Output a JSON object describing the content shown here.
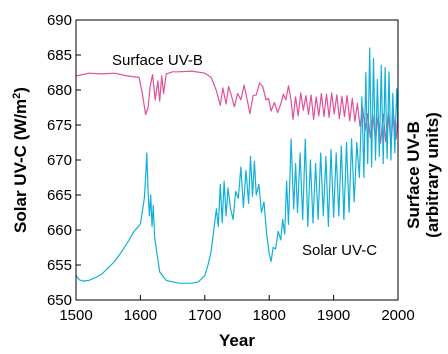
{
  "chart_data": {
    "type": "line",
    "xlabel": "Year",
    "ylabel_left": "Solar UV-C  (W/m²)",
    "ylabel_right_line1": "Surface UV-B",
    "ylabel_right_line2": "(arbitrary units)",
    "xlim": [
      1500,
      2000
    ],
    "ylim": [
      650,
      690
    ],
    "x_ticks": [
      1500,
      1600,
      1700,
      1800,
      1900,
      2000
    ],
    "y_ticks": [
      650,
      655,
      660,
      665,
      670,
      675,
      680,
      685,
      690
    ],
    "grid": false,
    "series": [
      {
        "name": "Surface UV-B",
        "color": "#e0509a",
        "points": [
          [
            1500,
            682
          ],
          [
            1520,
            682.4
          ],
          [
            1540,
            682.3
          ],
          [
            1560,
            682.4
          ],
          [
            1580,
            682
          ],
          [
            1598,
            681.8
          ],
          [
            1603,
            679.5
          ],
          [
            1608,
            676.5
          ],
          [
            1612,
            677.5
          ],
          [
            1615,
            680.5
          ],
          [
            1619,
            682.2
          ],
          [
            1623,
            678.6
          ],
          [
            1627,
            681.3
          ],
          [
            1630,
            678.4
          ],
          [
            1633,
            682
          ],
          [
            1636,
            679.5
          ],
          [
            1640,
            682.3
          ],
          [
            1650,
            682.6
          ],
          [
            1660,
            682.6
          ],
          [
            1680,
            682.7
          ],
          [
            1700,
            682.4
          ],
          [
            1710,
            681.8
          ],
          [
            1718,
            679.9
          ],
          [
            1724,
            677.8
          ],
          [
            1728,
            680.3
          ],
          [
            1733,
            678
          ],
          [
            1737,
            680.5
          ],
          [
            1741,
            679.3
          ],
          [
            1746,
            677.6
          ],
          [
            1751,
            679.5
          ],
          [
            1756,
            678.6
          ],
          [
            1761,
            680.7
          ],
          [
            1766,
            678.5
          ],
          [
            1770,
            676.6
          ],
          [
            1775,
            679.2
          ],
          [
            1780,
            679.3
          ],
          [
            1785,
            681
          ],
          [
            1790,
            680.5
          ],
          [
            1795,
            678.6
          ],
          [
            1799,
            678.8
          ],
          [
            1803,
            677
          ],
          [
            1808,
            678.2
          ],
          [
            1813,
            676.8
          ],
          [
            1818,
            678
          ],
          [
            1822,
            679.4
          ],
          [
            1826,
            678.6
          ],
          [
            1830,
            680.6
          ],
          [
            1834,
            678.5
          ],
          [
            1837,
            675.8
          ],
          [
            1841,
            679
          ],
          [
            1845,
            676.3
          ],
          [
            1849,
            679.6
          ],
          [
            1853,
            677.1
          ],
          [
            1857,
            679.2
          ],
          [
            1861,
            676.5
          ],
          [
            1865,
            679.3
          ],
          [
            1869,
            675.8
          ],
          [
            1873,
            679
          ],
          [
            1877,
            676.3
          ],
          [
            1881,
            679.5
          ],
          [
            1885,
            676.2
          ],
          [
            1889,
            679.4
          ],
          [
            1893,
            676.1
          ],
          [
            1897,
            679.6
          ],
          [
            1901,
            676.6
          ],
          [
            1905,
            679.3
          ],
          [
            1909,
            675.9
          ],
          [
            1913,
            679.1
          ],
          [
            1917,
            676.2
          ],
          [
            1921,
            679.2
          ],
          [
            1925,
            675.6
          ],
          [
            1929,
            678.8
          ],
          [
            1933,
            675.5
          ],
          [
            1937,
            678.1
          ],
          [
            1941,
            674.8
          ],
          [
            1945,
            677.6
          ],
          [
            1949,
            674.2
          ],
          [
            1953,
            676.6
          ],
          [
            1957,
            673.2
          ],
          [
            1961,
            676.4
          ],
          [
            1965,
            672.8
          ],
          [
            1969,
            676.2
          ],
          [
            1973,
            672.4
          ],
          [
            1977,
            676.6
          ],
          [
            1981,
            672.6
          ],
          [
            1985,
            676.8
          ],
          [
            1989,
            672.4
          ],
          [
            1993,
            676.6
          ],
          [
            1997,
            673
          ],
          [
            2000,
            676.4
          ]
        ]
      },
      {
        "name": "Solar UV-C",
        "color": "#10b0d8",
        "points": [
          [
            1500,
            653.5
          ],
          [
            1505,
            652.9
          ],
          [
            1510,
            652.7
          ],
          [
            1520,
            652.8
          ],
          [
            1530,
            653.2
          ],
          [
            1540,
            653.7
          ],
          [
            1550,
            654.6
          ],
          [
            1560,
            655.5
          ],
          [
            1570,
            656.8
          ],
          [
            1580,
            658.2
          ],
          [
            1590,
            659.8
          ],
          [
            1597,
            660.5
          ],
          [
            1600,
            660.9
          ],
          [
            1603,
            662.6
          ],
          [
            1606,
            664.5
          ],
          [
            1608,
            667.5
          ],
          [
            1610,
            671
          ],
          [
            1612,
            665.5
          ],
          [
            1614,
            662
          ],
          [
            1616,
            665
          ],
          [
            1618,
            660.5
          ],
          [
            1620,
            663.5
          ],
          [
            1622,
            659
          ],
          [
            1626,
            656.5
          ],
          [
            1630,
            654
          ],
          [
            1640,
            652.8
          ],
          [
            1660,
            652.4
          ],
          [
            1680,
            652.4
          ],
          [
            1690,
            652.6
          ],
          [
            1700,
            653.5
          ],
          [
            1705,
            655
          ],
          [
            1710,
            657
          ],
          [
            1714,
            660
          ],
          [
            1718,
            663
          ],
          [
            1721,
            660.5
          ],
          [
            1724,
            666.5
          ],
          [
            1727,
            661
          ],
          [
            1730,
            667
          ],
          [
            1733,
            662
          ],
          [
            1736,
            666
          ],
          [
            1740,
            663
          ],
          [
            1744,
            661.5
          ],
          [
            1748,
            665.5
          ],
          [
            1752,
            664.5
          ],
          [
            1756,
            669
          ],
          [
            1760,
            663.2
          ],
          [
            1764,
            668.5
          ],
          [
            1768,
            663.8
          ],
          [
            1771,
            670.5
          ],
          [
            1774,
            664.8
          ],
          [
            1777,
            669.8
          ],
          [
            1780,
            665
          ],
          [
            1784,
            666.5
          ],
          [
            1788,
            662.5
          ],
          [
            1792,
            664
          ],
          [
            1796,
            659.5
          ],
          [
            1800,
            656.6
          ],
          [
            1803,
            655.5
          ],
          [
            1806,
            657.5
          ],
          [
            1810,
            657.3
          ],
          [
            1814,
            659.8
          ],
          [
            1818,
            658.6
          ],
          [
            1821,
            661.5
          ],
          [
            1824,
            659.4
          ],
          [
            1827,
            667
          ],
          [
            1830,
            660.8
          ],
          [
            1834,
            673
          ],
          [
            1838,
            663
          ],
          [
            1841,
            669.5
          ],
          [
            1844,
            662.5
          ],
          [
            1848,
            671
          ],
          [
            1852,
            661.5
          ],
          [
            1856,
            673
          ],
          [
            1860,
            660.5
          ],
          [
            1864,
            670
          ],
          [
            1868,
            661
          ],
          [
            1872,
            669.5
          ],
          [
            1876,
            661.5
          ],
          [
            1880,
            671
          ],
          [
            1884,
            662
          ],
          [
            1888,
            670.5
          ],
          [
            1892,
            660.5
          ],
          [
            1896,
            671.5
          ],
          [
            1900,
            661.8
          ],
          [
            1904,
            671
          ],
          [
            1908,
            662
          ],
          [
            1912,
            672
          ],
          [
            1916,
            661.5
          ],
          [
            1920,
            672.5
          ],
          [
            1924,
            662.5
          ],
          [
            1928,
            673
          ],
          [
            1932,
            664
          ],
          [
            1936,
            672.5
          ],
          [
            1940,
            667.5
          ],
          [
            1944,
            679
          ],
          [
            1947,
            667.5
          ],
          [
            1950,
            682.5
          ],
          [
            1953,
            669.5
          ],
          [
            1956,
            686
          ],
          [
            1959,
            669
          ],
          [
            1962,
            684.5
          ],
          [
            1965,
            670
          ],
          [
            1968,
            681.5
          ],
          [
            1971,
            670.5
          ],
          [
            1974,
            683.5
          ],
          [
            1977,
            669.5
          ],
          [
            1980,
            683.2
          ],
          [
            1983,
            670.2
          ],
          [
            1986,
            682.6
          ],
          [
            1989,
            670
          ],
          [
            1992,
            679.5
          ],
          [
            1995,
            671
          ],
          [
            1998,
            680.2
          ],
          [
            2000,
            675
          ]
        ]
      }
    ]
  },
  "labels": {
    "uvb": "Surface UV-B",
    "uvc": "Solar UV-C"
  }
}
